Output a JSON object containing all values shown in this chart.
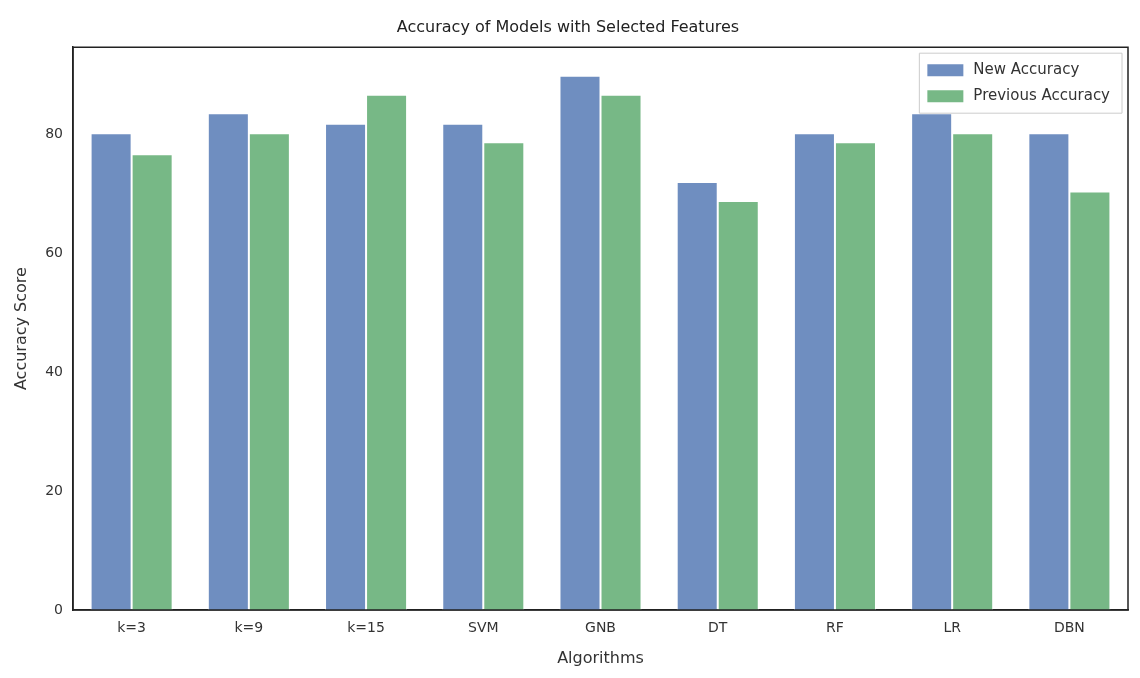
{
  "chart_data": {
    "type": "bar",
    "title": "Accuracy of Models with Selected Features",
    "xlabel": "Algorithms",
    "ylabel": "Accuracy Score",
    "categories": [
      "k=3",
      "k=9",
      "k=15",
      "SVM",
      "GNB",
      "DT",
      "RF",
      "LR",
      "DBN"
    ],
    "series": [
      {
        "name": "New Accuracy",
        "color": "#6f8ec0",
        "values": [
          80.2,
          83.6,
          81.8,
          81.8,
          89.9,
          72.0,
          80.2,
          83.6,
          80.2
        ]
      },
      {
        "name": "Previous Accuracy",
        "color": "#77b886",
        "values": [
          76.7,
          80.2,
          86.7,
          78.7,
          86.7,
          68.8,
          78.7,
          80.2,
          70.4
        ]
      }
    ],
    "ylim": [
      0,
      94.7
    ],
    "yticks": [
      0,
      20,
      40,
      60,
      80
    ],
    "grid": false,
    "legend": "top right"
  }
}
